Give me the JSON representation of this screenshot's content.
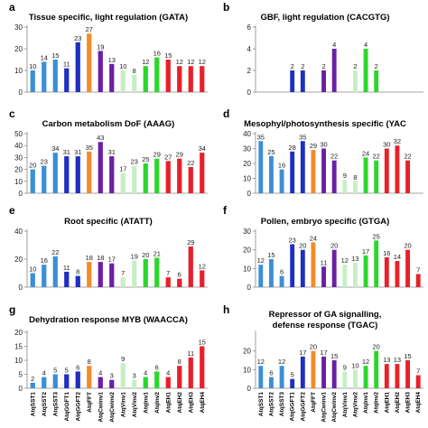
{
  "categories": [
    "AtqSST1",
    "AtqSST2",
    "AtqSST3",
    "AtqGGFT1",
    "AtqGGFT2",
    "AtqFFT",
    "AtqCwinv1",
    "AtqCwinv2",
    "AtqVinv1",
    "AtqVinv2",
    "AtqInv1",
    "AtqInv2",
    "AtqEH1",
    "AtqEH2",
    "AtqEH3",
    "AtqEH4"
  ],
  "bar_colors": [
    "#3b8fd6",
    "#3b8fd6",
    "#3b8fd6",
    "#1f2fc0",
    "#1f2fc0",
    "#f28c28",
    "#6a1fa5",
    "#6a1fa5",
    "#c7efc4",
    "#c7efc4",
    "#2bd62b",
    "#2bd62b",
    "#e8202a",
    "#e8202a",
    "#e8202a",
    "#e8202a"
  ],
  "chart_data": [
    {
      "type": "bar",
      "panel": "a",
      "title": "Tissue specific, light regulation (GATA)",
      "ylim": [
        0,
        30
      ],
      "yticks": [
        0,
        10,
        20,
        30
      ],
      "values": [
        10,
        14,
        15,
        11,
        23,
        27,
        19,
        13,
        10,
        8,
        12,
        16,
        15,
        12,
        12,
        12
      ]
    },
    {
      "type": "bar",
      "panel": "b",
      "title": "GBF, light regulation (CACGTG)",
      "ylim": [
        0,
        6
      ],
      "yticks": [
        0,
        2,
        4,
        6
      ],
      "values": [
        null,
        null,
        null,
        2,
        2,
        null,
        2,
        4,
        null,
        2,
        4,
        2,
        null,
        null,
        null,
        null
      ]
    },
    {
      "type": "bar",
      "panel": "c",
      "title": "Carbon metabolism DoF (AAAG)",
      "ylim": [
        0,
        50
      ],
      "yticks": [
        0,
        10,
        20,
        30,
        40,
        50
      ],
      "values": [
        20,
        23,
        34,
        31,
        31,
        35,
        43,
        31,
        17,
        23,
        25,
        29,
        27,
        29,
        22,
        34
      ]
    },
    {
      "type": "bar",
      "panel": "d",
      "title": "Mesophyl/photosynthesis specific (YAC",
      "ylim": [
        0,
        40
      ],
      "yticks": [
        0,
        10,
        20,
        30,
        40
      ],
      "values": [
        35,
        25,
        16,
        28,
        35,
        29,
        30,
        22,
        9,
        8,
        24,
        22,
        30,
        32,
        22,
        null
      ]
    },
    {
      "type": "bar",
      "panel": "e",
      "title": "Root specific  (ATATT)",
      "ylim": [
        0,
        40
      ],
      "yticks": [
        0,
        20,
        40
      ],
      "values": [
        10,
        16,
        22,
        11,
        8,
        18,
        18,
        17,
        7,
        19,
        20,
        21,
        7,
        6,
        29,
        12
      ]
    },
    {
      "type": "bar",
      "panel": "f",
      "title": "Pollen, embryo specific (GTGA)",
      "ylim": [
        0,
        30
      ],
      "yticks": [
        0,
        10,
        20,
        30
      ],
      "values": [
        12,
        15,
        6,
        23,
        20,
        24,
        11,
        20,
        12,
        13,
        17,
        25,
        16,
        14,
        20,
        7
      ]
    },
    {
      "type": "bar",
      "panel": "g",
      "title": "Dehydration response MYB (WAACCA)",
      "ylim": [
        0,
        20
      ],
      "yticks": [
        0,
        5,
        10,
        15,
        20
      ],
      "values": [
        2,
        4,
        5,
        5,
        6,
        8,
        4,
        3,
        9,
        3,
        4,
        6,
        4,
        8,
        11,
        15
      ]
    },
    {
      "type": "bar",
      "panel": "h",
      "title": "Repressor of GA signalling, defense response (TGAC)",
      "ylim": [
        0,
        30
      ],
      "yticks": [
        0,
        10,
        20
      ],
      "values": [
        12,
        6,
        12,
        5,
        17,
        20,
        17,
        15,
        9,
        10,
        12,
        20,
        13,
        13,
        15,
        7
      ]
    }
  ]
}
